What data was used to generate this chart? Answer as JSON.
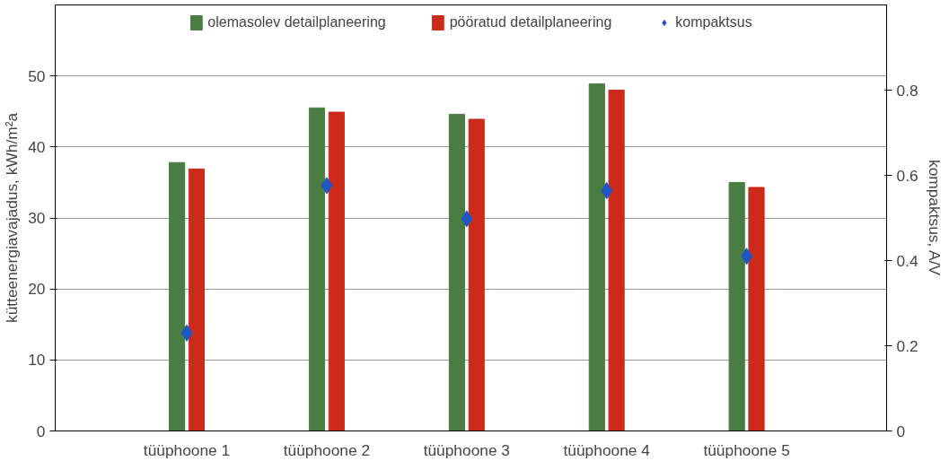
{
  "chart_data": {
    "type": "bar",
    "categories": [
      "tüüphoone 1",
      "tüüphoone 2",
      "tüüphoone 3",
      "tüüphoone 4",
      "tüüphoone 5"
    ],
    "ylabel": "kütteenergiavajadus, kWh/m²a",
    "y2label": "kompaktsus, A/V",
    "ylim": [
      0,
      60
    ],
    "yticks": [
      0,
      10,
      20,
      30,
      40,
      50
    ],
    "y2lim": [
      0,
      1
    ],
    "y2ticks": [
      0,
      0.2,
      0.4,
      0.6,
      0.8
    ],
    "grid": "y",
    "legend": "top",
    "series": [
      {
        "name": "olemasolev detailplaneering",
        "color": "#4a7d44",
        "values": [
          37.8,
          45.5,
          44.6,
          48.9,
          35.0
        ]
      },
      {
        "name": "pööratud detailplaneering",
        "color": "#cc2a1a",
        "values": [
          36.9,
          44.9,
          43.9,
          48.0,
          34.3
        ]
      },
      {
        "name": "kompaktsus",
        "type": "scatter",
        "axis": "y2",
        "marker": "diamond",
        "color": "#1f55c4",
        "values": [
          0.23,
          0.576,
          0.498,
          0.564,
          0.41
        ]
      }
    ]
  }
}
